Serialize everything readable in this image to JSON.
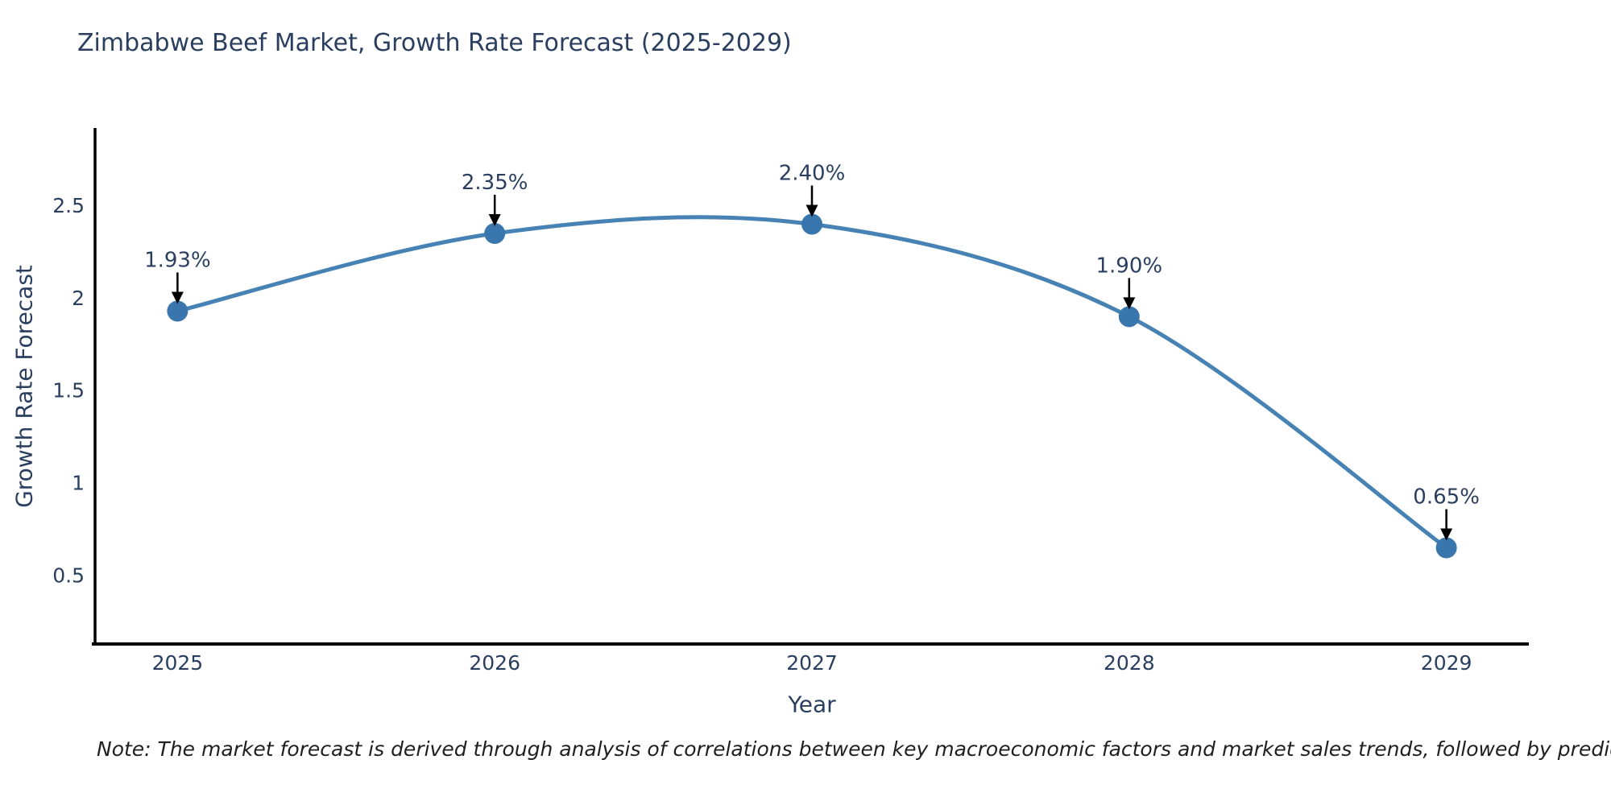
{
  "chart_data": {
    "type": "line",
    "title": "Zimbabwe Beef Market, Growth Rate Forecast (2025-2029)",
    "xlabel": "Year",
    "ylabel": "Growth Rate Forecast",
    "x": [
      2025,
      2026,
      2027,
      2028,
      2029
    ],
    "series": [
      {
        "name": "Growth Rate Forecast",
        "values": [
          1.93,
          2.35,
          2.4,
          1.9,
          0.65
        ]
      }
    ],
    "point_labels": [
      "1.93%",
      "2.35%",
      "2.40%",
      "1.90%",
      "0.65%"
    ],
    "x_tick_labels": [
      "2025",
      "2026",
      "2027",
      "2028",
      "2029"
    ],
    "y_ticks": [
      0.5,
      1,
      1.5,
      2,
      2.5
    ],
    "y_tick_labels": [
      "0.5",
      "1",
      "1.5",
      "2",
      "2.5"
    ],
    "xlim": [
      2024.74,
      2029.26
    ],
    "ylim": [
      0.13,
      2.92
    ],
    "grid": false,
    "legend": "none",
    "curve": "spline",
    "note": "Note: The market forecast is derived through analysis of correlations between key macroeconomic factors and market sales trends, followed by predictive modeling to project future sales",
    "colors": {
      "line": "#4682b4",
      "marker": "#3a76ae",
      "axis": "#000000",
      "tick_text": "#2a3f5f",
      "title_text": "#2a3f5f",
      "annotation_text": "#2a3f5f",
      "annotation_arrow": "#000000",
      "note_text": "#1f1f1f",
      "background": "#ffffff"
    }
  }
}
